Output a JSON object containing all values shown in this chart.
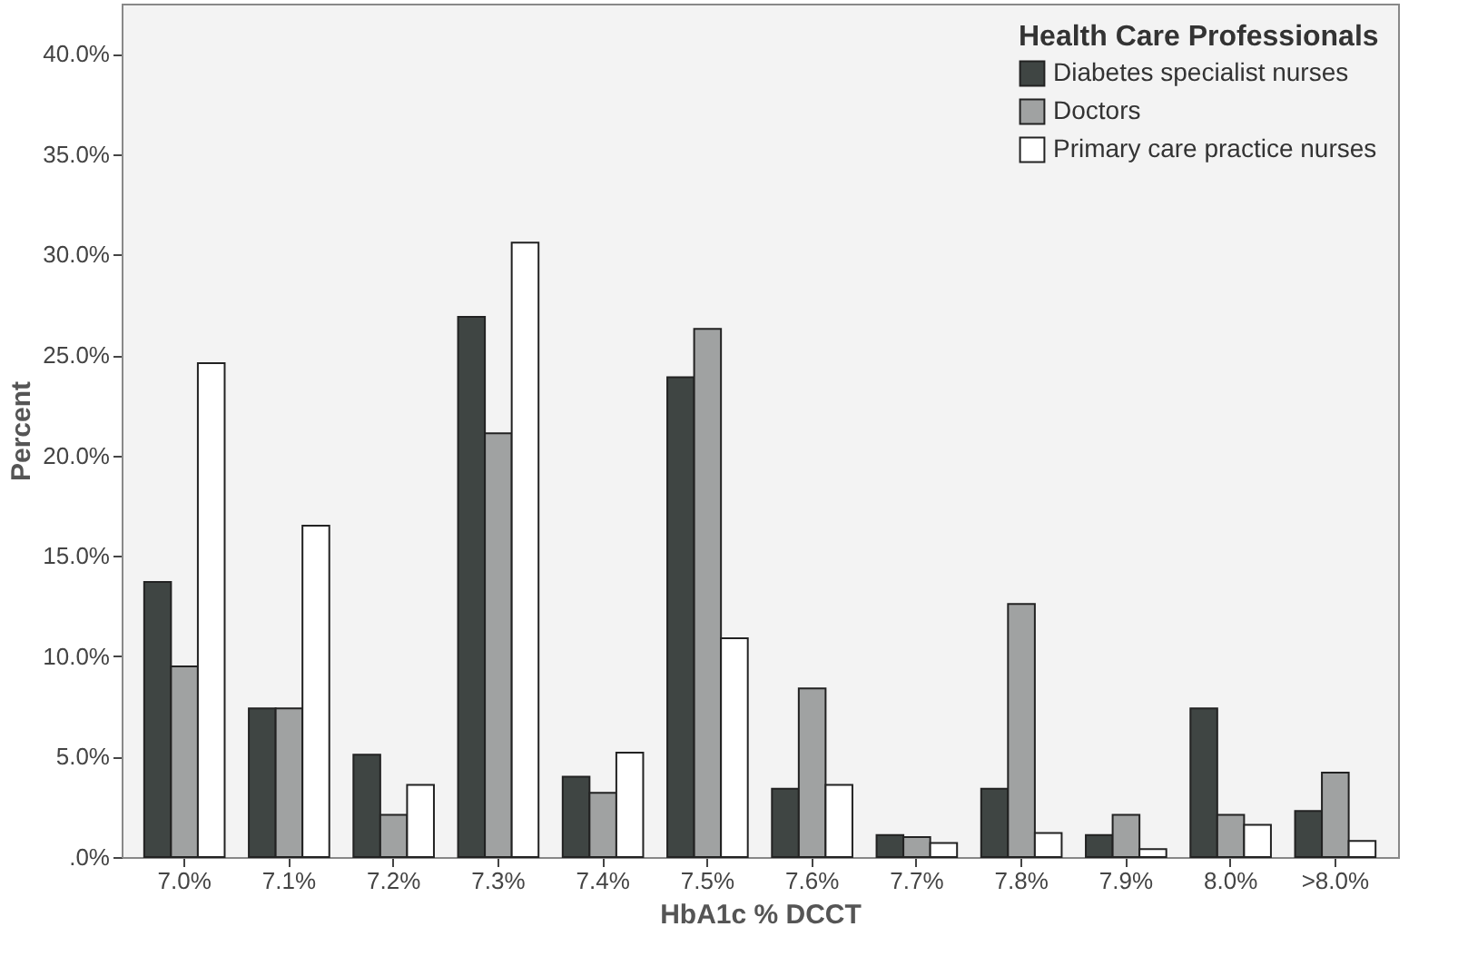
{
  "chart_data": {
    "type": "bar",
    "xlabel": "HbA1c % DCCT",
    "ylabel": "Percent",
    "legend_title": "Health Care Professionals",
    "legend": "top right",
    "grid": false,
    "categories": [
      "7.0%",
      "7.1%",
      "7.2%",
      "7.3%",
      "7.4%",
      "7.5%",
      "7.6%",
      "7.7%",
      "7.8%",
      "7.9%",
      "8.0%",
      ">8.0%"
    ],
    "ylim": [
      0,
      42.5
    ],
    "yticks": [
      {
        "value": 0,
        "label": ".0%"
      },
      {
        "value": 5,
        "label": "5.0%"
      },
      {
        "value": 10,
        "label": "10.0%"
      },
      {
        "value": 15,
        "label": "15.0%"
      },
      {
        "value": 20,
        "label": "20.0%"
      },
      {
        "value": 25,
        "label": "25.0%"
      },
      {
        "value": 30,
        "label": "30.0%"
      },
      {
        "value": 35,
        "label": "35.0%"
      },
      {
        "value": 40,
        "label": "40.0%"
      }
    ],
    "series": [
      {
        "name": "Diabetes specialist nurses",
        "color": "#3f4543",
        "values": [
          13.7,
          7.4,
          5.1,
          26.9,
          4.0,
          23.9,
          3.4,
          1.1,
          3.4,
          1.1,
          7.4,
          2.3
        ]
      },
      {
        "name": "Doctors",
        "color": "#a0a2a2",
        "values": [
          9.5,
          7.4,
          2.1,
          21.1,
          3.2,
          26.3,
          8.4,
          1.0,
          12.6,
          2.1,
          2.1,
          4.2
        ]
      },
      {
        "name": "Primary care practice nurses",
        "color": "#ffffff",
        "values": [
          24.6,
          16.5,
          3.6,
          30.6,
          5.2,
          10.9,
          3.6,
          0.7,
          1.2,
          0.4,
          1.6,
          0.8
        ]
      }
    ]
  }
}
